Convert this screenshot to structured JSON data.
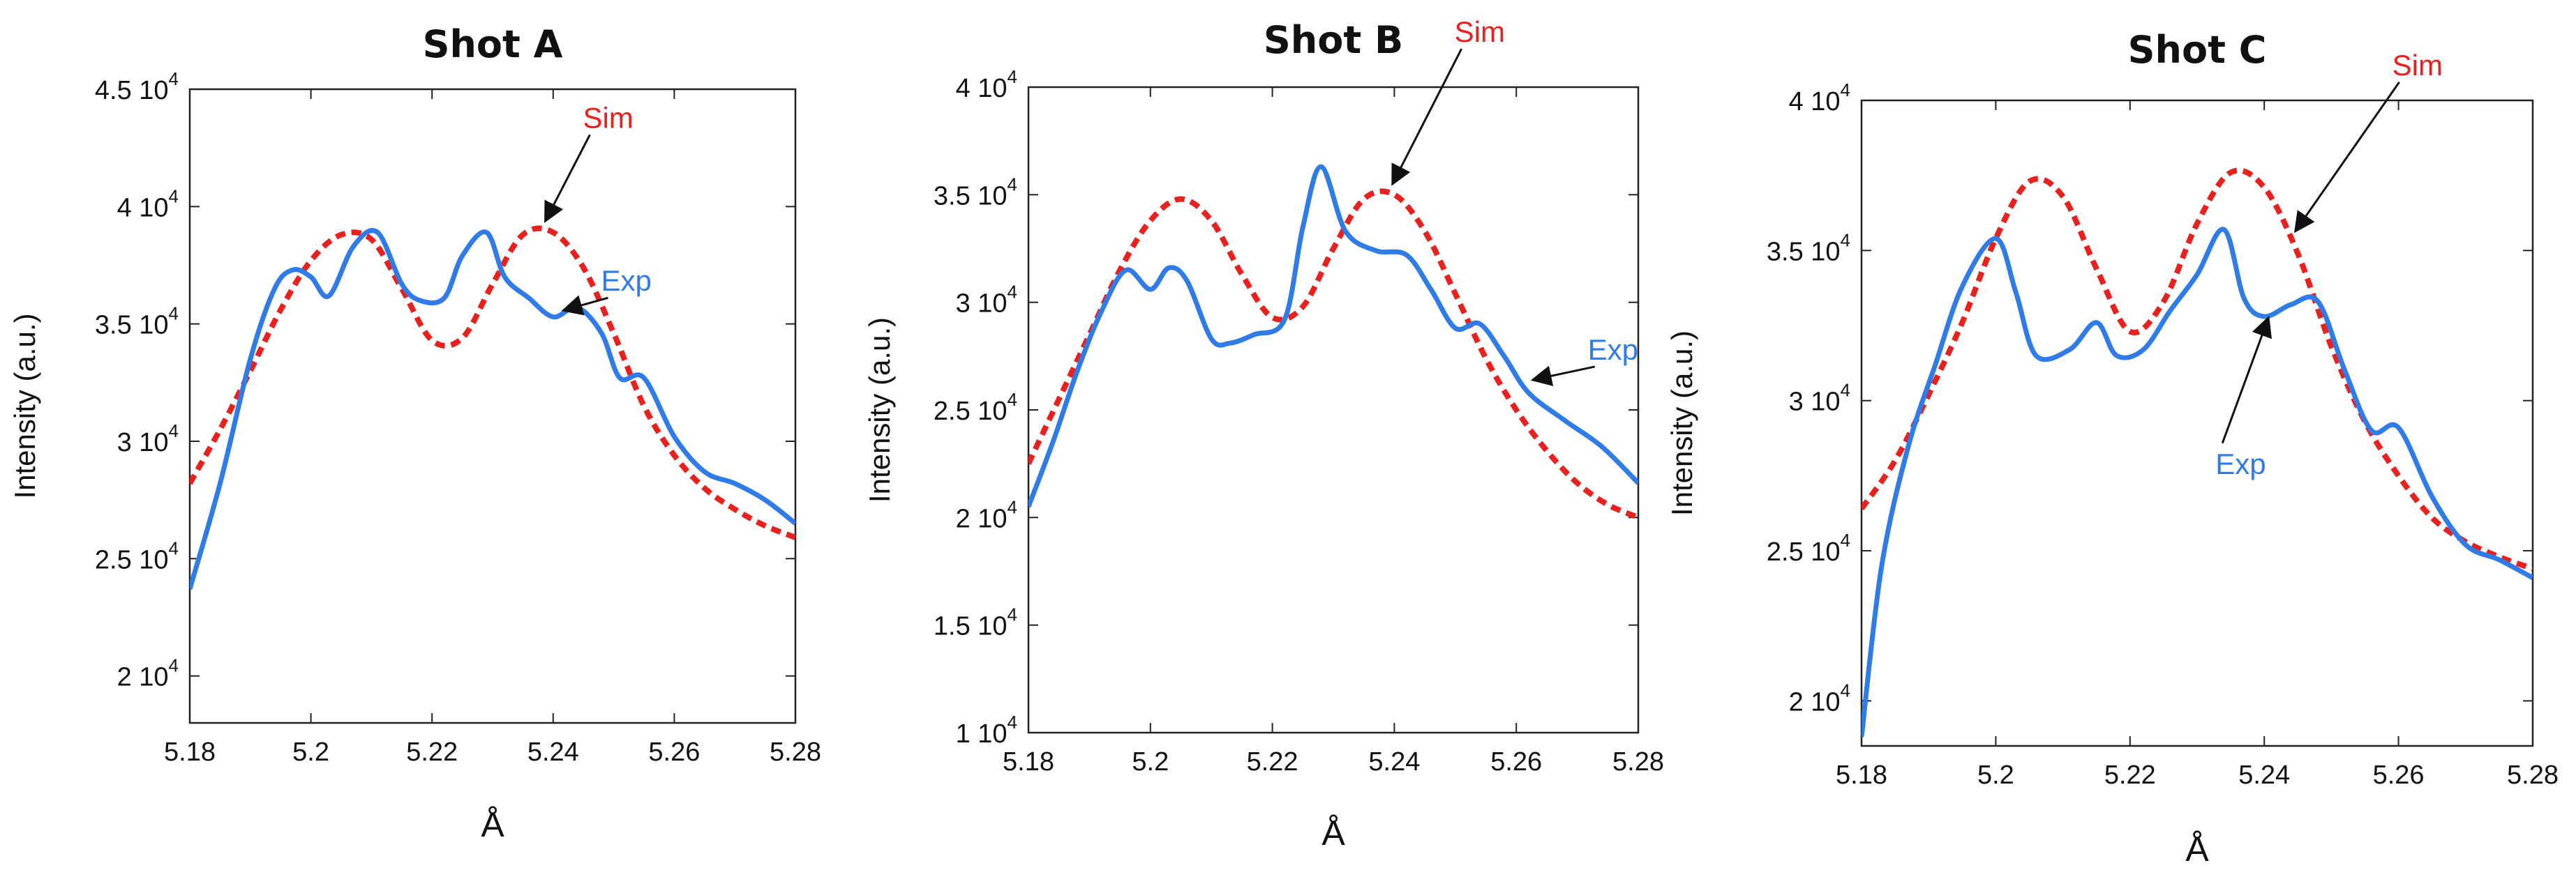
{
  "chart_data": [
    {
      "type": "line",
      "title": "Shot A",
      "xlabel": "Å",
      "ylabel": "Intensity (a.u.)",
      "xlim": [
        5.18,
        5.28
      ],
      "ylim": [
        18000,
        45000
      ],
      "x_ticks": [
        "5.18",
        "5.2",
        "5.22",
        "5.24",
        "5.26",
        "5.28"
      ],
      "y_ticks": [
        {
          "mantissa": "2",
          "exp": "4",
          "value": 20000
        },
        {
          "mantissa": "2.5",
          "exp": "4",
          "value": 25000
        },
        {
          "mantissa": "3",
          "exp": "4",
          "value": 30000
        },
        {
          "mantissa": "3.5",
          "exp": "4",
          "value": 35000
        },
        {
          "mantissa": "4",
          "exp": "4",
          "value": 40000
        },
        {
          "mantissa": "4.5",
          "exp": "4",
          "value": 45000
        }
      ],
      "grid": false,
      "series": [
        {
          "name": "Sim",
          "color": "#e8201e",
          "style": "dashed",
          "x": [
            5.18,
            5.185,
            5.19,
            5.195,
            5.2,
            5.205,
            5.21,
            5.215,
            5.22,
            5.225,
            5.23,
            5.235,
            5.24,
            5.245,
            5.25,
            5.255,
            5.26,
            5.265,
            5.27,
            5.275,
            5.28
          ],
          "y": [
            28200,
            30500,
            33000,
            35600,
            37700,
            38800,
            38600,
            36500,
            34300,
            34400,
            36700,
            38800,
            38900,
            37400,
            34600,
            31500,
            29400,
            28000,
            27100,
            26400,
            25900
          ]
        },
        {
          "name": "Exp",
          "color": "#2f7be8",
          "style": "solid",
          "x": [
            5.18,
            5.185,
            5.19,
            5.194,
            5.197,
            5.2,
            5.203,
            5.207,
            5.211,
            5.215,
            5.218,
            5.222,
            5.225,
            5.229,
            5.232,
            5.236,
            5.24,
            5.244,
            5.248,
            5.251,
            5.255,
            5.26,
            5.265,
            5.27,
            5.275,
            5.28
          ],
          "y": [
            23700,
            28200,
            33500,
            36500,
            37300,
            37000,
            36200,
            38300,
            38900,
            36700,
            36000,
            36100,
            37900,
            38900,
            37000,
            36100,
            35300,
            35700,
            34600,
            32700,
            32700,
            30200,
            28700,
            28200,
            27500,
            26500
          ]
        }
      ],
      "annotations": [
        {
          "text": "Sim",
          "series": "Sim",
          "x": 5.238,
          "y": 39200
        },
        {
          "text": "Exp",
          "series": "Exp",
          "x": 5.241,
          "y": 35400
        }
      ]
    },
    {
      "type": "line",
      "title": "Shot B",
      "xlabel": "Å",
      "ylabel": "Intensity (a.u.)",
      "xlim": [
        5.18,
        5.28
      ],
      "ylim": [
        10000,
        40000
      ],
      "x_ticks": [
        "5.18",
        "5.2",
        "5.22",
        "5.24",
        "5.26",
        "5.28"
      ],
      "y_ticks": [
        {
          "mantissa": "1",
          "exp": "4",
          "value": 10000
        },
        {
          "mantissa": "1.5",
          "exp": "4",
          "value": 15000
        },
        {
          "mantissa": "2",
          "exp": "4",
          "value": 20000
        },
        {
          "mantissa": "2.5",
          "exp": "4",
          "value": 25000
        },
        {
          "mantissa": "3",
          "exp": "4",
          "value": 30000
        },
        {
          "mantissa": "3.5",
          "exp": "4",
          "value": 35000
        },
        {
          "mantissa": "4",
          "exp": "4",
          "value": 40000
        }
      ],
      "grid": false,
      "series": [
        {
          "name": "Sim",
          "color": "#e8201e",
          "style": "dashed",
          "x": [
            5.18,
            5.185,
            5.19,
            5.195,
            5.2,
            5.205,
            5.21,
            5.215,
            5.22,
            5.225,
            5.23,
            5.235,
            5.24,
            5.245,
            5.25,
            5.255,
            5.26,
            5.265,
            5.27,
            5.275,
            5.28
          ],
          "y": [
            22500,
            25500,
            28500,
            31500,
            33800,
            34800,
            33800,
            31300,
            29300,
            29800,
            32500,
            34800,
            35000,
            33300,
            30400,
            27400,
            25000,
            23100,
            21600,
            20600,
            20000
          ]
        },
        {
          "name": "Exp",
          "color": "#2f7be8",
          "style": "solid",
          "x": [
            5.18,
            5.184,
            5.188,
            5.192,
            5.196,
            5.2,
            5.203,
            5.206,
            5.21,
            5.213,
            5.217,
            5.222,
            5.225,
            5.228,
            5.232,
            5.237,
            5.242,
            5.246,
            5.25,
            5.254,
            5.258,
            5.262,
            5.268,
            5.274,
            5.28
          ],
          "y": [
            20500,
            23500,
            26800,
            29600,
            31500,
            30600,
            31600,
            31000,
            28300,
            28100,
            28500,
            29200,
            33500,
            36300,
            33300,
            32400,
            32200,
            30600,
            28800,
            29000,
            27500,
            25800,
            24500,
            23300,
            21600
          ]
        }
      ],
      "annotations": [
        {
          "text": "Sim",
          "series": "Sim",
          "x": 5.239,
          "y": 35300
        },
        {
          "text": "Exp",
          "series": "Exp",
          "x": 5.262,
          "y": 26200
        }
      ]
    },
    {
      "type": "line",
      "title": "Shot C",
      "xlabel": "Å",
      "ylabel": "Intensity (a.u.)",
      "xlim": [
        5.18,
        5.28
      ],
      "ylim": [
        18500,
        40000
      ],
      "x_ticks": [
        "5.18",
        "5.2",
        "5.22",
        "5.24",
        "5.26",
        "5.28"
      ],
      "y_ticks": [
        {
          "mantissa": "2",
          "exp": "4",
          "value": 20000
        },
        {
          "mantissa": "2.5",
          "exp": "4",
          "value": 25000
        },
        {
          "mantissa": "3",
          "exp": "4",
          "value": 30000
        },
        {
          "mantissa": "3.5",
          "exp": "4",
          "value": 35000
        },
        {
          "mantissa": "4",
          "exp": "4",
          "value": 40000
        }
      ],
      "grid": false,
      "series": [
        {
          "name": "Sim",
          "color": "#e8201e",
          "style": "dashed",
          "x": [
            5.18,
            5.185,
            5.19,
            5.195,
            5.2,
            5.205,
            5.21,
            5.215,
            5.22,
            5.225,
            5.23,
            5.235,
            5.24,
            5.245,
            5.25,
            5.255,
            5.26,
            5.265,
            5.27,
            5.275,
            5.28
          ],
          "y": [
            26400,
            28000,
            30200,
            32600,
            35400,
            37300,
            36800,
            34400,
            32300,
            33300,
            35900,
            37600,
            37100,
            34900,
            31800,
            29300,
            27500,
            26100,
            25300,
            24800,
            24400
          ]
        },
        {
          "name": "Exp",
          "color": "#2f7be8",
          "style": "solid",
          "x": [
            5.18,
            5.183,
            5.187,
            5.191,
            5.195,
            5.2,
            5.203,
            5.206,
            5.211,
            5.215,
            5.218,
            5.222,
            5.226,
            5.23,
            5.234,
            5.237,
            5.24,
            5.244,
            5.248,
            5.252,
            5.256,
            5.26,
            5.265,
            5.27,
            5.275,
            5.28
          ],
          "y": [
            18800,
            24500,
            28500,
            31200,
            33800,
            35400,
            33600,
            31500,
            31700,
            32600,
            31500,
            31700,
            33000,
            34200,
            35700,
            33400,
            32800,
            33200,
            33300,
            31000,
            29000,
            29100,
            26800,
            25200,
            24700,
            24100
          ]
        }
      ],
      "annotations": [
        {
          "text": "Sim",
          "series": "Sim",
          "x": 5.244,
          "y": 35500
        },
        {
          "text": "Exp",
          "series": "Exp",
          "x": 5.24,
          "y": 32900
        }
      ]
    }
  ]
}
